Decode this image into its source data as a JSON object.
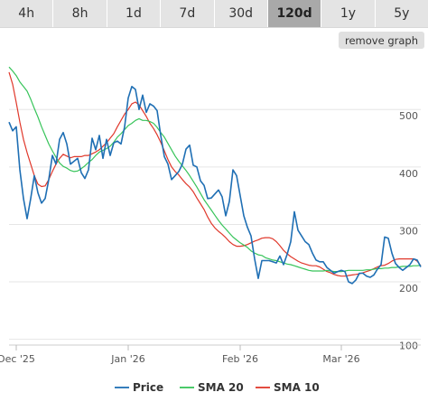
{
  "tabs": [
    {
      "label": "4h",
      "active": false
    },
    {
      "label": "8h",
      "active": false
    },
    {
      "label": "1d",
      "active": false
    },
    {
      "label": "7d",
      "active": false
    },
    {
      "label": "30d",
      "active": false
    },
    {
      "label": "120d",
      "active": true
    },
    {
      "label": "1y",
      "active": false
    },
    {
      "label": "5y",
      "active": false
    }
  ],
  "remove_graph_label": "remove graph",
  "colors": {
    "price": "#1f6fb4",
    "sma20": "#37c45a",
    "sma10": "#e0382b",
    "grid": "#e6e6e6",
    "active_tab": "#a9a9a9"
  },
  "chart_data": {
    "type": "line",
    "title": "",
    "xlabel": "",
    "ylabel": "",
    "x_ticks": [
      "Dec '25",
      "Jan '26",
      "Feb '26",
      "Mar '26"
    ],
    "y_ticks": [
      100,
      200,
      300,
      400,
      500
    ],
    "ylim": [
      90,
      590
    ],
    "grid": true,
    "legend_position": "bottom-center",
    "series": [
      {
        "name": "Price",
        "color_key": "price",
        "values": [
          478,
          463,
          470,
          395,
          345,
          310,
          345,
          385,
          355,
          337,
          345,
          378,
          420,
          405,
          448,
          460,
          440,
          405,
          410,
          415,
          390,
          380,
          395,
          450,
          430,
          455,
          415,
          448,
          420,
          442,
          445,
          440,
          470,
          520,
          540,
          535,
          500,
          525,
          495,
          510,
          506,
          498,
          455,
          418,
          405,
          378,
          385,
          392,
          405,
          431,
          438,
          403,
          400,
          376,
          368,
          345,
          346,
          353,
          360,
          348,
          315,
          340,
          395,
          385,
          350,
          315,
          295,
          280,
          240,
          206,
          237,
          237,
          237,
          235,
          233,
          245,
          230,
          248,
          270,
          322,
          290,
          280,
          270,
          265,
          250,
          238,
          235,
          235,
          225,
          220,
          215,
          218,
          220,
          218,
          200,
          197,
          203,
          215,
          215,
          210,
          208,
          212,
          222,
          230,
          278,
          276,
          250,
          232,
          225,
          220,
          225,
          230,
          240,
          238,
          226
        ]
      },
      {
        "name": "SMA 20",
        "color_key": "sma20",
        "values": [
          574,
          567,
          559,
          548,
          540,
          532,
          518,
          502,
          487,
          470,
          455,
          440,
          428,
          417,
          407,
          401,
          398,
          394,
          392,
          393,
          397,
          402,
          408,
          413,
          420,
          426,
          429,
          432,
          436,
          443,
          452,
          458,
          465,
          472,
          476,
          481,
          484,
          481,
          481,
          479,
          476,
          469,
          460,
          452,
          441,
          430,
          419,
          410,
          402,
          394,
          385,
          375,
          365,
          354,
          343,
          334,
          325,
          316,
          307,
          299,
          292,
          285,
          278,
          273,
          268,
          264,
          260,
          254,
          250,
          247,
          246,
          242,
          240,
          238,
          237,
          235,
          233,
          231,
          230,
          228,
          226,
          224,
          222,
          220,
          219,
          219,
          219,
          219,
          220,
          219,
          218,
          218,
          218,
          219,
          220,
          220,
          220,
          220,
          220,
          221,
          221,
          222,
          223,
          223,
          224,
          224,
          225,
          225,
          226,
          227,
          227,
          227,
          228,
          228,
          229
        ]
      },
      {
        "name": "SMA 10",
        "color_key": "sma10",
        "values": [
          565,
          544,
          512,
          478,
          448,
          425,
          405,
          385,
          370,
          366,
          367,
          378,
          392,
          405,
          415,
          422,
          419,
          416,
          418,
          418,
          418,
          420,
          420,
          423,
          426,
          430,
          436,
          442,
          450,
          458,
          470,
          481,
          492,
          500,
          510,
          513,
          508,
          498,
          488,
          476,
          467,
          456,
          443,
          428,
          413,
          400,
          392,
          386,
          378,
          371,
          365,
          357,
          346,
          336,
          326,
          313,
          302,
          294,
          288,
          283,
          277,
          270,
          265,
          262,
          262,
          263,
          265,
          268,
          271,
          273,
          276,
          277,
          277,
          275,
          270,
          263,
          255,
          249,
          244,
          240,
          236,
          233,
          231,
          229,
          228,
          228,
          226,
          222,
          218,
          216,
          213,
          211,
          210,
          210,
          211,
          212,
          213,
          214,
          216,
          218,
          220,
          223,
          226,
          228,
          229,
          232,
          236,
          239,
          240,
          240,
          240,
          240,
          240,
          236,
          228
        ]
      }
    ]
  }
}
